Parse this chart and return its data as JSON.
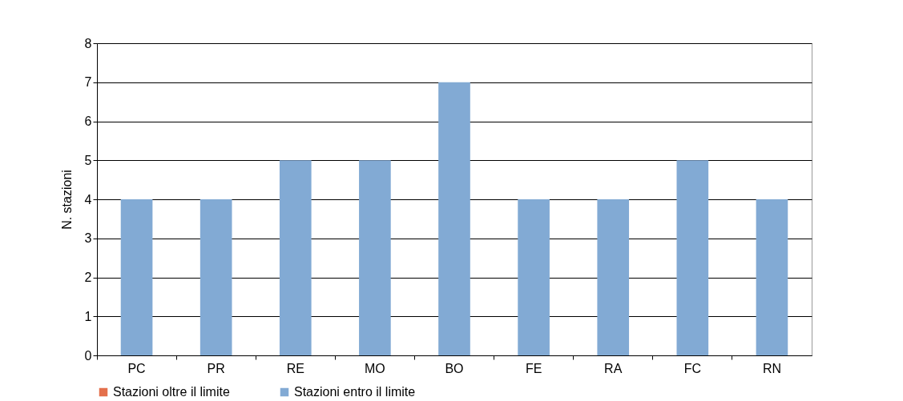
{
  "chart_data": {
    "type": "bar",
    "ylabel": "N. stazioni",
    "categories": [
      "PC",
      "PR",
      "RE",
      "MO",
      "BO",
      "FE",
      "RA",
      "FC",
      "RN"
    ],
    "series": [
      {
        "name": "Stazioni oltre il limite",
        "color": "#e4704c",
        "values": [
          0,
          0,
          0,
          0,
          0,
          0,
          0,
          0,
          0
        ]
      },
      {
        "name": "Stazioni entro il limite",
        "color": "#82aad4",
        "values": [
          4,
          4,
          5,
          5,
          7,
          4,
          4,
          5,
          4
        ]
      }
    ],
    "stacked": true,
    "ylim": [
      0,
      8
    ],
    "yticks": [
      0,
      1,
      2,
      3,
      4,
      5,
      6,
      7,
      8
    ],
    "grid": "y",
    "legend": "bottom"
  }
}
